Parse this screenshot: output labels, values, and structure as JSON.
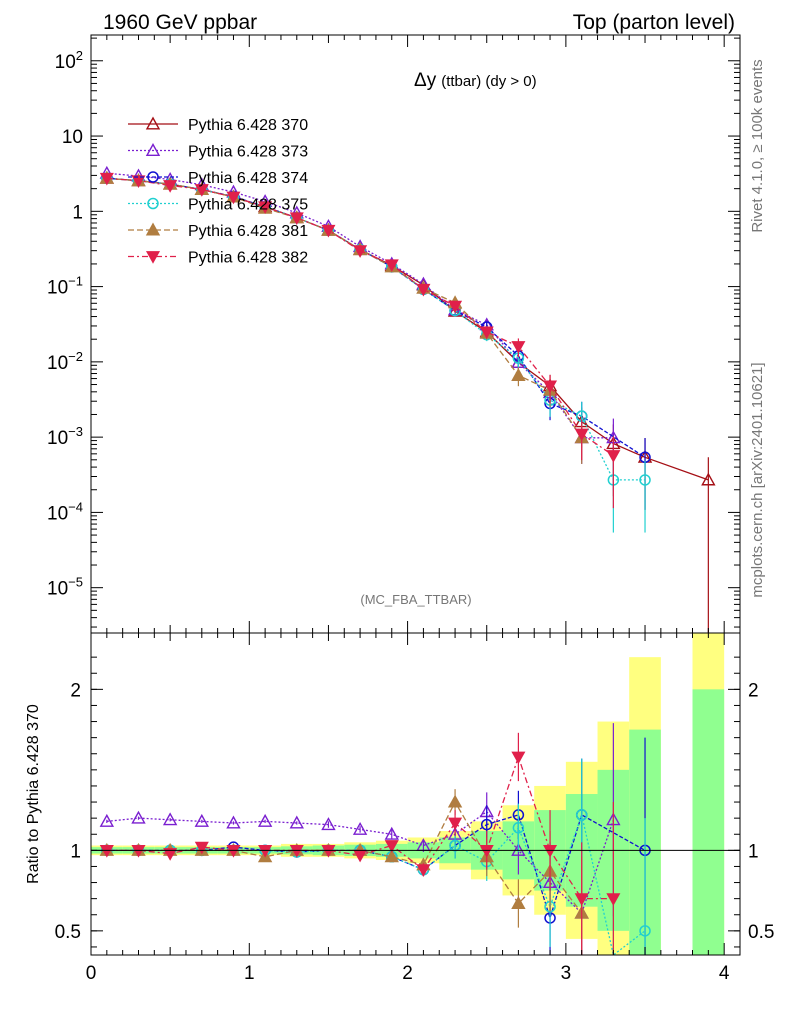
{
  "header": {
    "left_title": "1960 GeV ppbar",
    "right_title": "Top (parton level)"
  },
  "plot": {
    "title_symbol": "Δy",
    "title_main": "(ttbar) (dy > 0)",
    "watermark": "(MC_FBA_TTBAR)",
    "side_label_top": "Rivet 4.1.0, ≥ 100k events",
    "side_label_bottom": "mcplots.cern.ch [arXiv:2401.10621]",
    "ratio_ylabel": "Ratio to Pythia 6.428 370"
  },
  "chart_data": [
    {
      "type": "line",
      "panel": "main",
      "yscale": "log",
      "xlim": [
        0,
        4.1
      ],
      "ylim": [
        2.5e-06,
        220
      ],
      "y_ticks": [
        {
          "value": 1e-05,
          "base": "10",
          "exp": "−5"
        },
        {
          "value": 0.0001,
          "base": "10",
          "exp": "−4"
        },
        {
          "value": 0.001,
          "base": "10",
          "exp": "−3"
        },
        {
          "value": 0.01,
          "base": "10",
          "exp": "−2"
        },
        {
          "value": 0.1,
          "base": "10",
          "exp": "−1"
        },
        {
          "value": 1,
          "base": "1",
          "exp": ""
        },
        {
          "value": 10,
          "base": "10",
          "exp": ""
        },
        {
          "value": 100,
          "base": "10",
          "exp": "2"
        }
      ],
      "x": [
        0.1,
        0.3,
        0.5,
        0.7,
        0.9,
        1.1,
        1.3,
        1.5,
        1.7,
        1.9,
        2.1,
        2.3,
        2.5,
        2.7,
        2.9,
        3.1,
        3.3,
        3.5,
        3.7,
        3.9
      ],
      "series": [
        {
          "name": "Pythia 6.428 370",
          "color": "#a50f15",
          "dash": "",
          "marker": "tri-open",
          "values": [
            2.75,
            2.55,
            2.3,
            1.95,
            1.55,
            1.15,
            0.82,
            0.56,
            0.31,
            0.19,
            0.105,
            0.047,
            0.025,
            0.0098,
            0.0048,
            0.0016,
            0.00082,
            0.00054,
            null,
            0.00027
          ]
        },
        {
          "name": "Pythia 6.428 373",
          "color": "#7a1fd0",
          "dash": "2,2",
          "marker": "tri-open",
          "values": [
            3.2,
            2.95,
            2.65,
            2.25,
            1.8,
            1.35,
            0.95,
            0.63,
            0.34,
            0.2,
            0.108,
            0.049,
            0.031,
            0.0098,
            0.0039,
            0.00098,
            0.00098,
            null,
            null,
            null
          ]
        },
        {
          "name": "Pythia 6.428 374",
          "color": "#1010d0",
          "dash": "4,2",
          "marker": "circle-open",
          "values": [
            2.75,
            2.55,
            2.3,
            1.95,
            1.58,
            1.15,
            0.82,
            0.56,
            0.31,
            0.183,
            0.092,
            0.048,
            0.029,
            0.012,
            0.0028,
            0.0019,
            null,
            0.00054,
            null,
            null
          ]
        },
        {
          "name": "Pythia 6.428 375",
          "color": "#20d0d0",
          "dash": "2,2",
          "marker": "circle-open",
          "values": [
            2.75,
            2.55,
            2.3,
            1.95,
            1.55,
            1.15,
            0.82,
            0.56,
            0.31,
            0.183,
            0.092,
            0.048,
            0.023,
            0.0112,
            0.0031,
            0.0019,
            0.00027,
            0.00027,
            null,
            null
          ]
        },
        {
          "name": "Pythia 6.428 381",
          "color": "#b07d40",
          "dash": "6,3",
          "marker": "tri-filled",
          "values": [
            2.75,
            2.55,
            2.3,
            1.95,
            1.55,
            1.1,
            0.82,
            0.56,
            0.31,
            0.183,
            0.095,
            0.061,
            0.024,
            0.0066,
            0.0042,
            0.00098,
            null,
            null,
            null,
            null
          ]
        },
        {
          "name": "Pythia 6.428 382",
          "color": "#e0204a",
          "dash": "6,3,2,3",
          "marker": "tri-down-filled",
          "values": [
            2.75,
            2.55,
            2.2,
            1.95,
            1.55,
            1.15,
            0.82,
            0.56,
            0.3,
            0.195,
            0.092,
            0.055,
            0.025,
            0.016,
            0.0048,
            0.0011,
            0.00057,
            null,
            null,
            null
          ]
        }
      ]
    },
    {
      "type": "line",
      "panel": "ratio",
      "yscale": "linear",
      "xlim": [
        0,
        4.1
      ],
      "ylim": [
        0.35,
        2.35
      ],
      "ylabel": "Ratio to Pythia 6.428 370",
      "y_ticks": [
        0.5,
        1,
        2
      ],
      "x_ticks": [
        0,
        1,
        2,
        3,
        4
      ],
      "x": [
        0.1,
        0.3,
        0.5,
        0.7,
        0.9,
        1.1,
        1.3,
        1.5,
        1.7,
        1.9,
        2.1,
        2.3,
        2.5,
        2.7,
        2.9,
        3.1,
        3.3,
        3.5
      ],
      "bands": {
        "edges": [
          0,
          0.2,
          0.4,
          0.6,
          0.8,
          1.0,
          1.2,
          1.4,
          1.6,
          1.8,
          2.0,
          2.2,
          2.4,
          2.6,
          2.8,
          3.0,
          3.2,
          3.4,
          3.6,
          3.8,
          4.0
        ],
        "yellow_half": [
          0.03,
          0.03,
          0.03,
          0.03,
          0.03,
          0.03,
          0.04,
          0.04,
          0.05,
          0.06,
          0.08,
          0.12,
          0.18,
          0.28,
          0.4,
          0.55,
          0.8,
          1.2,
          null,
          1.5
        ],
        "green_half": [
          0.02,
          0.02,
          0.02,
          0.02,
          0.02,
          0.02,
          0.025,
          0.03,
          0.035,
          0.04,
          0.05,
          0.08,
          0.12,
          0.18,
          0.25,
          0.35,
          0.5,
          0.75,
          null,
          1.0
        ],
        "yellow_color": "#ffff80",
        "green_color": "#90ff90"
      },
      "series": [
        {
          "name": "Pythia 6.428 373",
          "color": "#7a1fd0",
          "dash": "2,2",
          "marker": "tri-open",
          "values": [
            1.18,
            1.2,
            1.19,
            1.18,
            1.17,
            1.18,
            1.17,
            1.16,
            1.13,
            1.1,
            1.03,
            1.1,
            1.24,
            1.0,
            0.8,
            0.61,
            1.19,
            null
          ]
        },
        {
          "name": "Pythia 6.428 374",
          "color": "#1010d0",
          "dash": "4,2",
          "marker": "circle-open",
          "values": [
            1.0,
            1.0,
            1.0,
            1.0,
            1.02,
            1.0,
            0.99,
            1.0,
            1.0,
            0.96,
            0.88,
            1.03,
            1.16,
            1.22,
            0.58,
            1.22,
            null,
            1.0
          ]
        },
        {
          "name": "Pythia 6.428 375",
          "color": "#20d0d0",
          "dash": "2,2",
          "marker": "circle-open",
          "values": [
            1.0,
            1.0,
            1.0,
            1.0,
            1.0,
            1.0,
            0.99,
            1.0,
            1.0,
            0.96,
            0.88,
            1.03,
            0.93,
            1.14,
            0.65,
            1.22,
            0.35,
            0.5
          ]
        },
        {
          "name": "Pythia 6.428 381",
          "color": "#b07d40",
          "dash": "6,3",
          "marker": "tri-filled",
          "values": [
            1.0,
            1.0,
            1.0,
            1.0,
            1.0,
            0.96,
            1.0,
            1.0,
            1.0,
            0.96,
            0.91,
            1.3,
            0.96,
            0.67,
            0.87,
            0.61,
            null,
            null
          ]
        },
        {
          "name": "Pythia 6.428 382",
          "color": "#e0204a",
          "dash": "6,3,2,3",
          "marker": "tri-down-filled",
          "values": [
            1.0,
            1.0,
            0.98,
            1.02,
            1.0,
            1.0,
            1.0,
            1.0,
            0.97,
            1.03,
            0.88,
            1.17,
            1.0,
            1.58,
            1.0,
            0.7,
            0.7,
            null
          ]
        }
      ]
    }
  ]
}
